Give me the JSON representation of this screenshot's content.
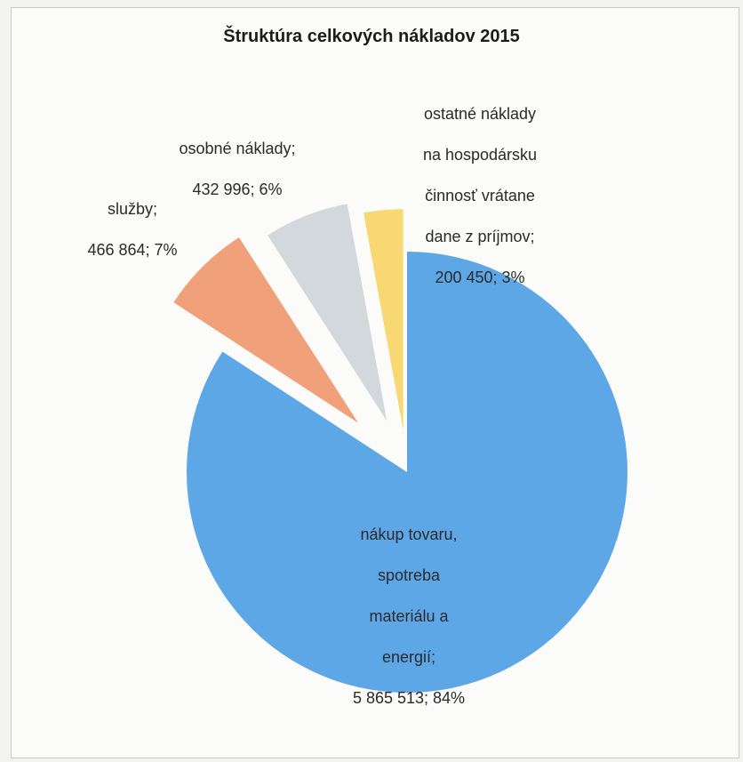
{
  "chart_data": {
    "type": "pie",
    "title": "Štruktúra celkových nákladov 2015",
    "slices": [
      {
        "label_lines": [
          "nákup tovaru,",
          "spotreba",
          "materiálu a",
          "energií;"
        ],
        "value_text": "5 865 513; 84%",
        "value": 5865513,
        "percent": 84,
        "color": "#5da7e7"
      },
      {
        "label_lines": [
          "služby;"
        ],
        "value_text": "466 864; 7%",
        "value": 466864,
        "percent": 7,
        "color": "#f0a179"
      },
      {
        "label_lines": [
          "osobné náklady;"
        ],
        "value_text": "432 996; 6%",
        "value": 432996,
        "percent": 6,
        "color": "#d2d8dc"
      },
      {
        "label_lines": [
          "ostatné náklady",
          "na hospodársku",
          "činnosť vrátane",
          "dane z príjmov;"
        ],
        "value_text": "200 450; 3%",
        "value": 200450,
        "percent": 3,
        "color": "#f7d873"
      }
    ]
  }
}
